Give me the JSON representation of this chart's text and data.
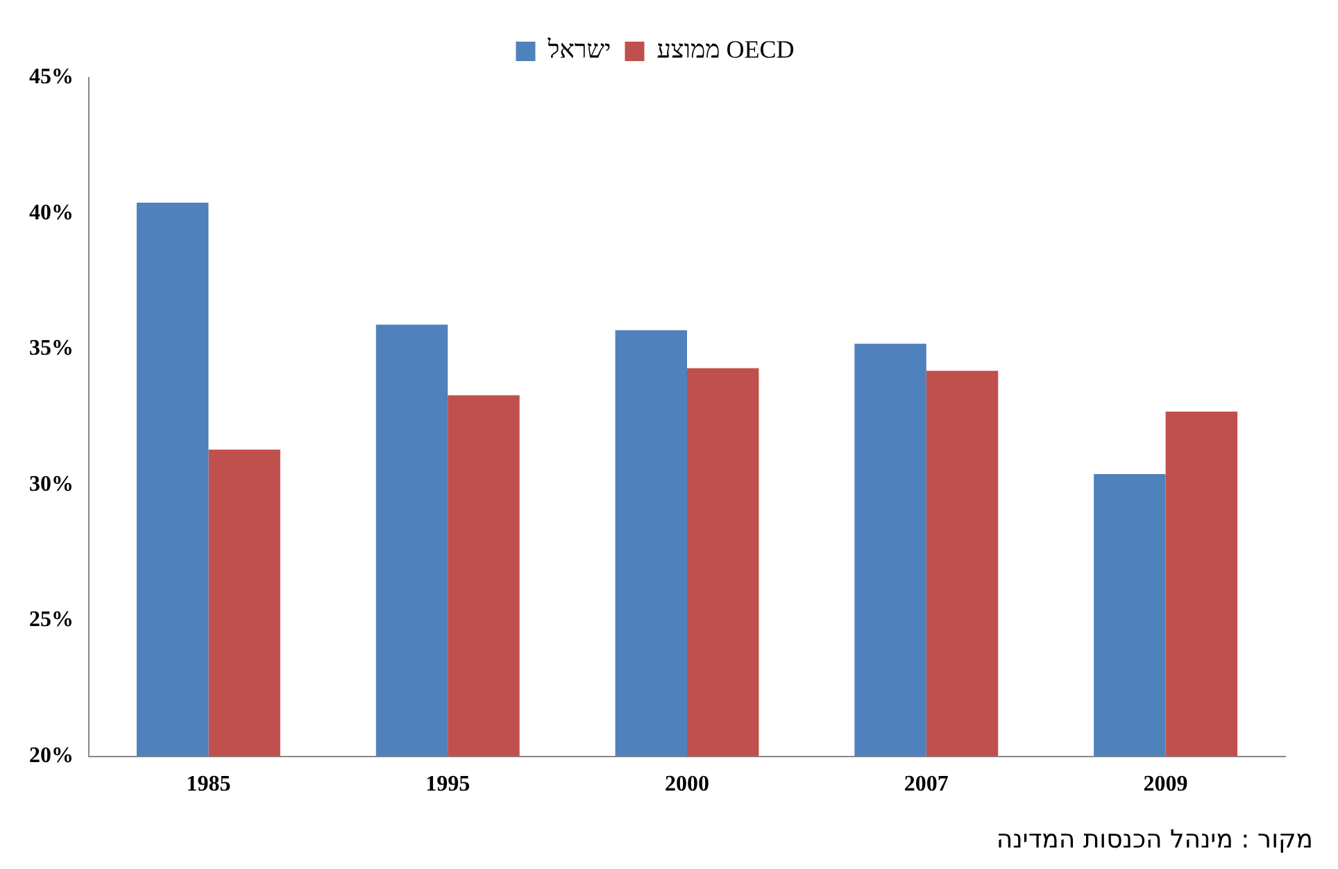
{
  "chart_data": {
    "type": "bar",
    "categories": [
      "1985",
      "1995",
      "2000",
      "2007",
      "2009"
    ],
    "series": [
      {
        "name": "ישראל",
        "color": "#4f81bd",
        "values": [
          40.4,
          35.9,
          35.7,
          35.2,
          30.4
        ]
      },
      {
        "name": "ממוצע OECD",
        "color": "#c0504d",
        "values": [
          31.3,
          33.3,
          34.3,
          34.2,
          32.7
        ]
      }
    ],
    "ylim": [
      20,
      45
    ],
    "yticks": [
      {
        "value": 20,
        "label": "20%"
      },
      {
        "value": 25,
        "label": "25%"
      },
      {
        "value": 30,
        "label": "30%"
      },
      {
        "value": 35,
        "label": "35%"
      },
      {
        "value": 40,
        "label": "40%"
      },
      {
        "value": 45,
        "label": "45%"
      }
    ],
    "grid": false,
    "legend": "top",
    "annotations": [
      "מקור : מינהל הכנסות המדינה"
    ]
  }
}
